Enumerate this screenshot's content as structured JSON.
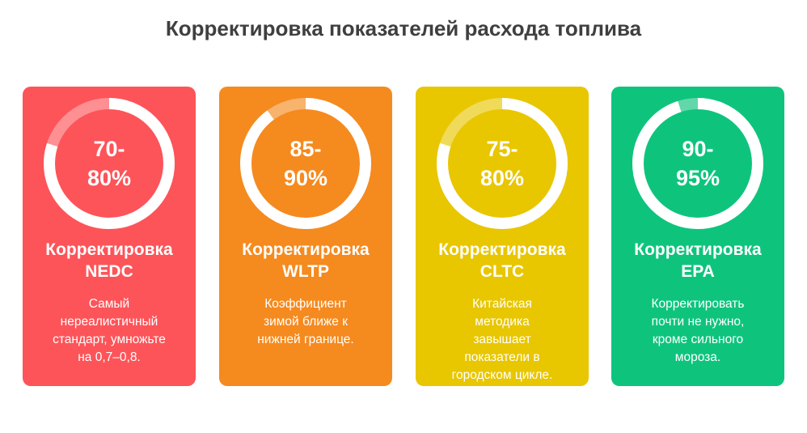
{
  "title": "Корректировка показателей расхода топлива",
  "colors": {
    "text": "#3f3f3f",
    "track": "#ffffff"
  },
  "cards": [
    {
      "value": "70-\n80%",
      "heading": "Корректировка\nNEDC",
      "description": "Самый\nнереалистичный\nстандарт, умножьте\nна 0,7–0,8.",
      "color": "#fd5459",
      "percent": 80
    },
    {
      "value": "85-\n90%",
      "heading": "Корректировка\nWLTP",
      "description": "Коэффициент\nзимой ближе к\nнижней границе.",
      "color": "#f58a1f",
      "percent": 90
    },
    {
      "value": "75-\n80%",
      "heading": "Корректировка\nCLTC",
      "description": "Китайская\nметодика\nзавышает\nпоказатели в\nгородском цикле.",
      "color": "#e8c600",
      "percent": 80
    },
    {
      "value": "90-\n95%",
      "heading": "Корректировка\nEPA",
      "description": "Корректировать\nпочти не нужно,\nкроме сильного\nмороза.",
      "color": "#0ec47d",
      "percent": 95
    }
  ]
}
